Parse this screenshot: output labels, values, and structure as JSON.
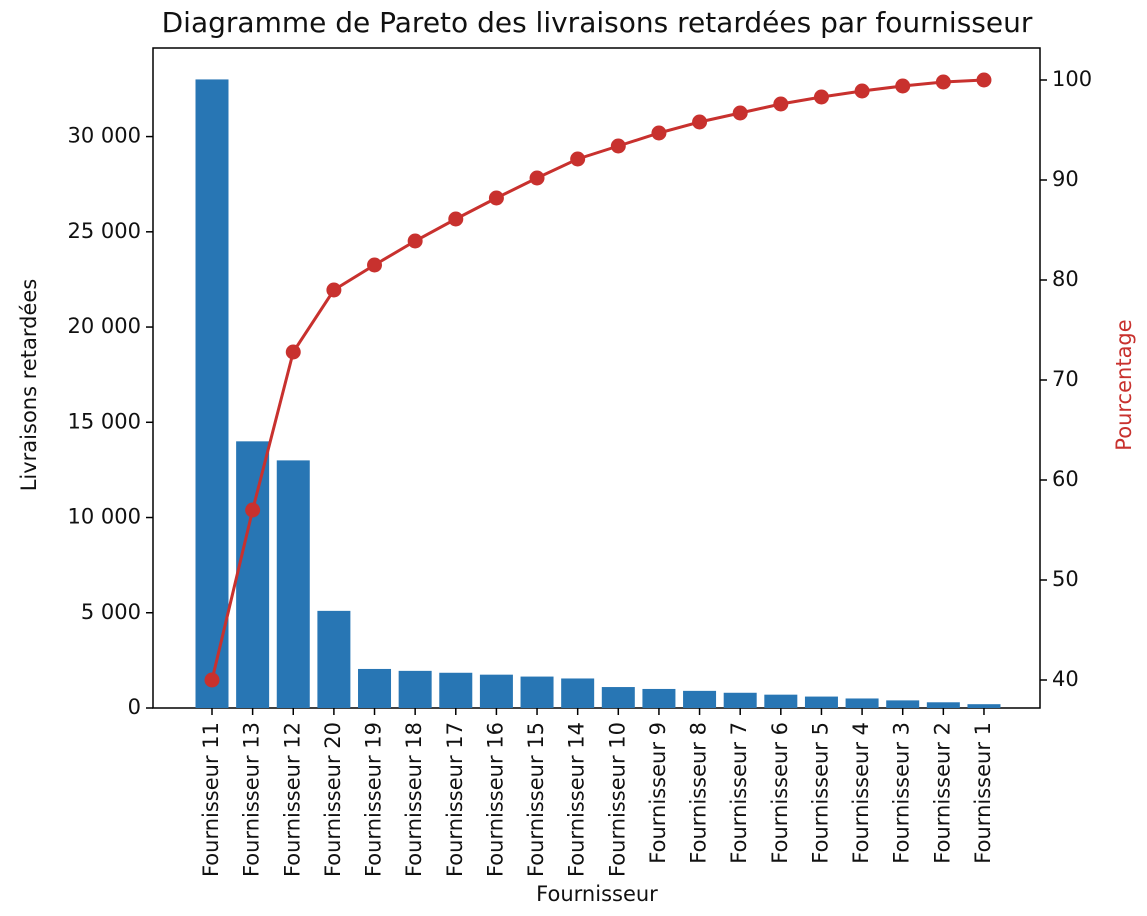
{
  "chart_data": {
    "type": "pareto",
    "title": "Diagramme de Pareto des livraisons retardées par fournisseur",
    "x_label": "Fournisseur",
    "y_label": "Livraisons retardées",
    "y2_label": "Pourcentage",
    "categories": [
      "Fournisseur 11",
      "Fournisseur 13",
      "Fournisseur 12",
      "Fournisseur 20",
      "Fournisseur 19",
      "Fournisseur 18",
      "Fournisseur 17",
      "Fournisseur 16",
      "Fournisseur 15",
      "Fournisseur 14",
      "Fournisseur 10",
      "Fournisseur 9",
      "Fournisseur 8",
      "Fournisseur 7",
      "Fournisseur 6",
      "Fournisseur 5",
      "Fournisseur 4",
      "Fournisseur 3",
      "Fournisseur 2",
      "Fournisseur 1"
    ],
    "series": [
      {
        "type": "bar",
        "color": "#2876b4",
        "values": [
          33000,
          14000,
          13000,
          5100,
          2050,
          1950,
          1850,
          1750,
          1650,
          1550,
          1100,
          1000,
          900,
          800,
          700,
          600,
          500,
          400,
          300,
          200
        ]
      },
      {
        "type": "line",
        "axis": "y2",
        "color": "#c8312e",
        "values": [
          40.0,
          57.0,
          72.8,
          79.0,
          81.5,
          83.9,
          86.1,
          88.2,
          90.2,
          92.1,
          93.4,
          94.7,
          95.8,
          96.7,
          97.6,
          98.3,
          98.9,
          99.4,
          99.8,
          100.0
        ]
      }
    ],
    "ylim": [
      0,
      34650
    ],
    "yticks": [
      0,
      {
        "value": 5000,
        "label": "5 000"
      },
      {
        "value": 10000,
        "label": "10 000"
      },
      {
        "value": 15000,
        "label": "15 000"
      },
      {
        "value": 20000,
        "label": "20 000"
      },
      {
        "value": 25000,
        "label": "25 000"
      },
      {
        "value": 30000,
        "label": "30 000"
      }
    ],
    "y2lim": [
      37.2,
      103.2
    ],
    "y2ticks": [
      40,
      50,
      60,
      70,
      80,
      90,
      100
    ]
  }
}
